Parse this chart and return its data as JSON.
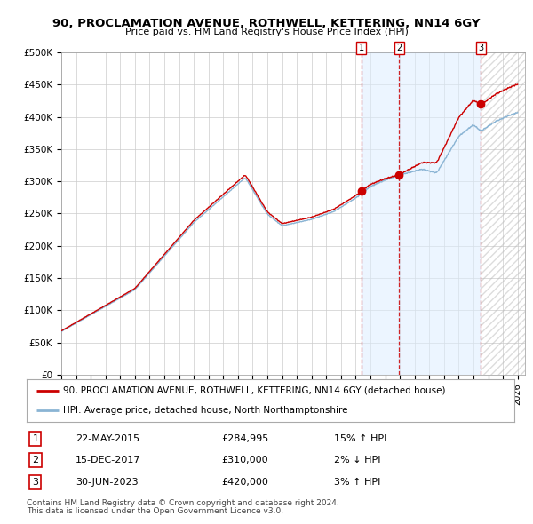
{
  "title": "90, PROCLAMATION AVENUE, ROTHWELL, KETTERING, NN14 6GY",
  "subtitle": "Price paid vs. HM Land Registry's House Price Index (HPI)",
  "hpi_label": "HPI: Average price, detached house, North Northamptonshire",
  "property_label": "90, PROCLAMATION AVENUE, ROTHWELL, KETTERING, NN14 6GY (detached house)",
  "footer1": "Contains HM Land Registry data © Crown copyright and database right 2024.",
  "footer2": "This data is licensed under the Open Government Licence v3.0.",
  "sale_dates": [
    "22-MAY-2015",
    "15-DEC-2017",
    "30-JUN-2023"
  ],
  "sale_prices": [
    284995,
    310000,
    420000
  ],
  "sale_hpi_pct": [
    "15% ↑ HPI",
    "2% ↓ HPI",
    "3% ↑ HPI"
  ],
  "property_color": "#cc0000",
  "hpi_color": "#8ab4d4",
  "vline_color": "#cc0000",
  "shade_color": "#ddeeff",
  "ylim": [
    0,
    500000
  ],
  "yticks": [
    0,
    50000,
    100000,
    150000,
    200000,
    250000,
    300000,
    350000,
    400000,
    450000,
    500000
  ],
  "xlim_start": 1995.0,
  "xlim_end": 2026.5,
  "sale1_year": 2015.388,
  "sale2_year": 2017.956,
  "sale3_year": 2023.496
}
